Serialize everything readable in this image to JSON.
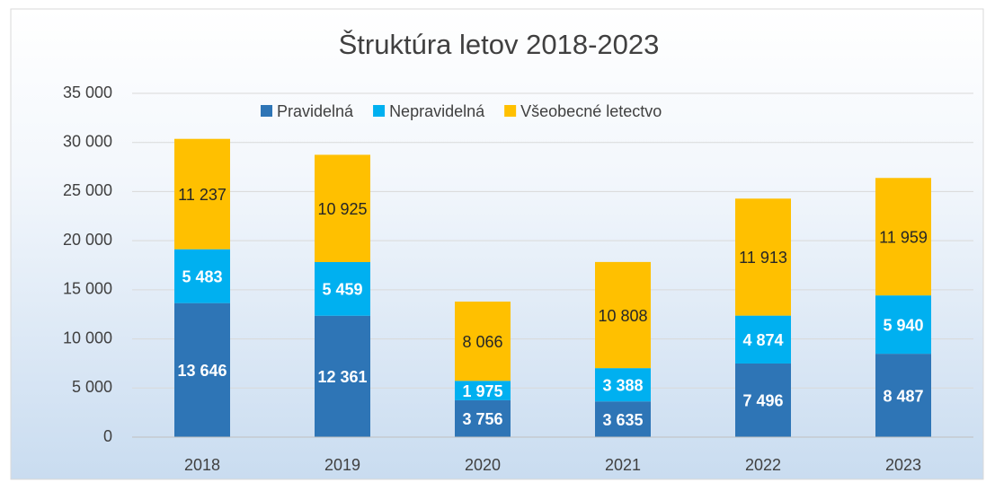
{
  "chart_data": {
    "type": "stacked_bar",
    "title": "Štruktúra letov 2018-2023",
    "categories": [
      "2018",
      "2019",
      "2020",
      "2021",
      "2022",
      "2023"
    ],
    "series": [
      {
        "name": "Pravidelná",
        "color": "#2e75b6",
        "values": [
          13646,
          12361,
          3756,
          3635,
          7496,
          8487
        ],
        "value_labels": [
          "13 646",
          "12 361",
          "3 756",
          "3 635",
          "7 496",
          "8 487"
        ]
      },
      {
        "name": "Nepravidelná",
        "color": "#00b0f0",
        "values": [
          5483,
          5459,
          1975,
          3388,
          4874,
          5940
        ],
        "value_labels": [
          "5 483",
          "5 459",
          "1 975",
          "3 388",
          "4 874",
          "5 940"
        ]
      },
      {
        "name": "Všeobecné letectvo",
        "color": "#ffc000",
        "values": [
          11237,
          10925,
          8066,
          10808,
          11913,
          11959
        ],
        "value_labels": [
          "11 237",
          "10 925",
          "8 066",
          "10 808",
          "11 913",
          "11 959"
        ]
      }
    ],
    "ylim": [
      0,
      35000
    ],
    "yticks": [
      0,
      {
        "value": 5000,
        "label": "5 000"
      },
      {
        "value": 10000,
        "label": "10 000"
      },
      {
        "value": 15000,
        "label": "15 000"
      },
      {
        "value": 20000,
        "label": "20 000"
      },
      {
        "value": 25000,
        "label": "25 000"
      },
      {
        "value": 30000,
        "label": "30 000"
      },
      {
        "value": 35000,
        "label": "35 000"
      }
    ],
    "grid": true,
    "legend": "top"
  }
}
